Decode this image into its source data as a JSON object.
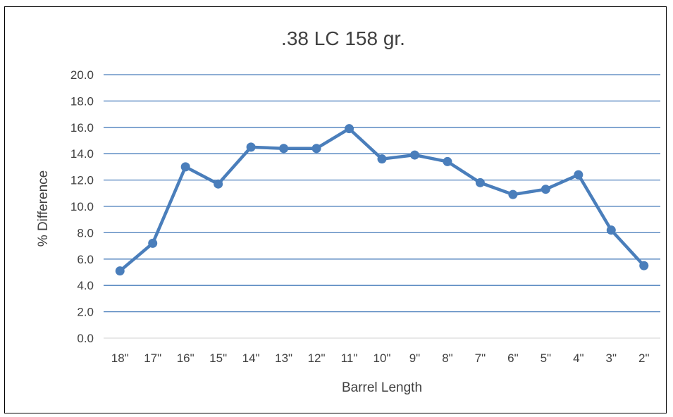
{
  "chart_data": {
    "type": "line",
    "title": ".38 LC 158 gr.",
    "xlabel": "Barrel Length",
    "ylabel": "% Difference",
    "categories": [
      "18\"",
      "17\"",
      "16\"",
      "15\"",
      "14\"",
      "13\"",
      "12\"",
      "11\"",
      "10\"",
      "9\"",
      "8\"",
      "7\"",
      "6\"",
      "5\"",
      "4\"",
      "3\"",
      "2\""
    ],
    "series": [
      {
        "values": [
          5.1,
          7.2,
          13.0,
          11.7,
          14.5,
          14.4,
          14.4,
          15.9,
          13.6,
          13.9,
          13.4,
          11.8,
          10.9,
          11.3,
          12.4,
          8.2,
          5.5
        ],
        "color": "#4a7ebb"
      }
    ],
    "ylim": [
      0,
      20
    ],
    "yticks": [
      "0.0",
      "2.0",
      "4.0",
      "6.0",
      "8.0",
      "10.0",
      "12.0",
      "14.0",
      "16.0",
      "18.0",
      "20.0"
    ],
    "grid": true,
    "gridline_color": "#4a7ebb",
    "legend": "none"
  }
}
